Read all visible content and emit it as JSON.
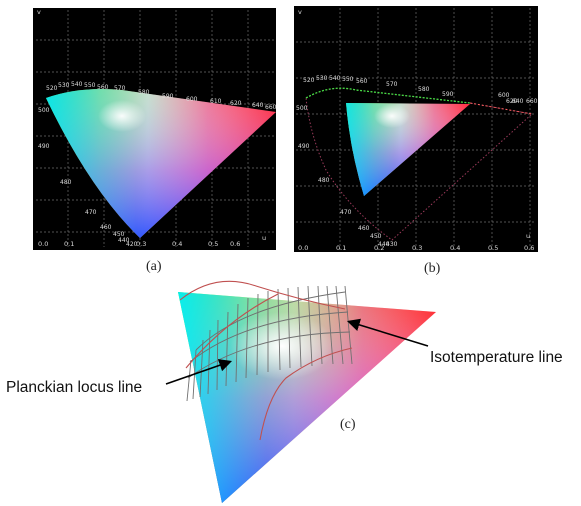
{
  "panels": {
    "a": {
      "label": "(a)",
      "x_ticks": [
        "0.0",
        "0.1",
        "0.2",
        "0.3",
        "0.4",
        "0.5",
        "0.6",
        "0.7"
      ],
      "y_ticks": [
        "0.0",
        "0.1",
        "0.2",
        "0.3",
        "0.4",
        "0.5",
        "0.6",
        "0.7",
        "0.8"
      ],
      "x_axis": "u",
      "y_axis": "v",
      "wavelength_labels": [
        "520",
        "530",
        "540",
        "550",
        "560",
        "570",
        "580",
        "590",
        "600",
        "610",
        "620",
        "640",
        "660",
        "500",
        "490",
        "480",
        "470",
        "460",
        "450",
        "440",
        "420"
      ]
    },
    "b": {
      "label": "(b)",
      "x_ticks": [
        "0.0",
        "0.1",
        "0.2",
        "0.3",
        "0.4",
        "0.5",
        "0.6"
      ],
      "y_ticks": [
        "0.0",
        "0.1",
        "0.2",
        "0.3",
        "0.4",
        "0.5",
        "0.6"
      ],
      "x_axis": "u",
      "y_axis": "v",
      "wavelength_labels": [
        "520",
        "530",
        "540",
        "550",
        "560",
        "570",
        "580",
        "590",
        "600",
        "620",
        "640",
        "660",
        "500",
        "490",
        "480",
        "470",
        "460",
        "450",
        "440",
        "430"
      ]
    },
    "c": {
      "label": "(c)",
      "isotemperature_label": "Isotemperature line",
      "planckian_label": "Planckian locus line"
    }
  },
  "colors": {
    "panel_background": "#000000",
    "grid": "#6e6e6e",
    "locus_curve": "#c05050",
    "iso_lines": "#707070",
    "arrow": "#000000"
  }
}
